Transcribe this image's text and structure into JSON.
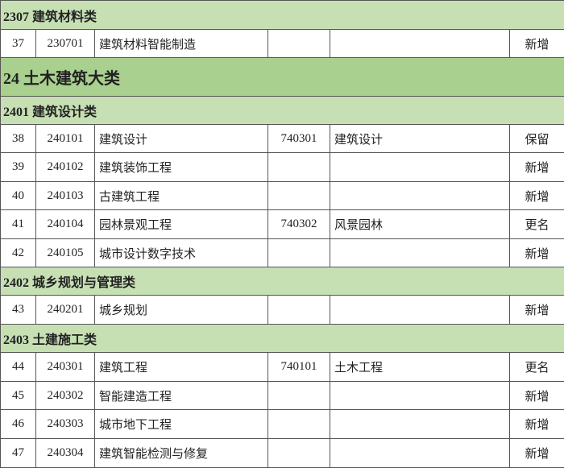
{
  "rows": [
    {
      "section": "2307 建筑材料类"
    },
    {
      "cells": [
        "37",
        "230701",
        "建筑材料智能制造",
        null,
        null,
        "新增"
      ]
    },
    {
      "major": "24 土木建筑大类"
    },
    {
      "section": "2401 建筑设计类"
    },
    {
      "cells": [
        "38",
        "240101",
        "建筑设计",
        "740301",
        "建筑设计",
        "保留"
      ]
    },
    {
      "cells": [
        "39",
        "240102",
        "建筑装饰工程",
        null,
        null,
        "新增"
      ]
    },
    {
      "cells": [
        "40",
        "240103",
        "古建筑工程",
        null,
        null,
        "新增"
      ]
    },
    {
      "cells": [
        "41",
        "240104",
        "园林景观工程",
        "740302",
        "风景园林",
        "更名"
      ]
    },
    {
      "cells": [
        "42",
        "240105",
        "城市设计数字技术",
        null,
        null,
        "新增"
      ]
    },
    {
      "section": "2402 城乡规划与管理类"
    },
    {
      "cells": [
        "43",
        "240201",
        "城乡规划",
        null,
        null,
        "新增"
      ]
    },
    {
      "section": "2403 土建施工类"
    },
    {
      "cells": [
        "44",
        "240301",
        "建筑工程",
        "740101",
        "土木工程",
        "更名"
      ]
    },
    {
      "cells": [
        "45",
        "240302",
        "智能建造工程",
        null,
        null,
        "新增"
      ]
    },
    {
      "cells": [
        "46",
        "240303",
        "城市地下工程",
        null,
        null,
        "新增"
      ]
    },
    {
      "cells": [
        "47",
        "240304",
        "建筑智能检测与修复",
        null,
        null,
        "新增"
      ]
    }
  ]
}
